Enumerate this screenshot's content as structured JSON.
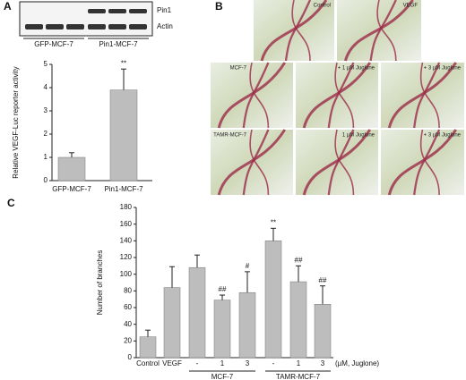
{
  "panel_labels": [
    "A",
    "B",
    "C"
  ],
  "blot": {
    "bands": [
      "Pin1",
      "Actin"
    ],
    "groups": [
      "GFP-MCF-7",
      "Pin1-MCF-7"
    ]
  },
  "photos": [
    {
      "label": "Control"
    },
    {
      "label": "VEGF"
    },
    {
      "label": "MCF-7"
    },
    {
      "label": "+ 1 µM Juglone"
    },
    {
      "label": "+ 3 µM Juglone"
    },
    {
      "label": "TAMR-MCF-7"
    },
    {
      "label": "1 µM Juglone"
    },
    {
      "label": "+ 3 µM Juglone"
    }
  ],
  "chart_data": [
    {
      "type": "bar",
      "ylabel": "Relative VEGF-Luc reporter activity",
      "categories": [
        "GFP-MCF-7",
        "Pin1-MCF-7"
      ],
      "values": [
        1,
        3.9
      ],
      "errors": [
        0.2,
        0.9
      ],
      "annotations": [
        null,
        "**"
      ],
      "color": "#bdbdbd",
      "ylim": [
        0,
        5
      ],
      "yticks": [
        0,
        1,
        2,
        3,
        4,
        5
      ]
    },
    {
      "type": "bar",
      "ylabel": "Number of branches",
      "categories": [
        "Control",
        "VEGF",
        "-",
        "1",
        "3",
        "-",
        "1",
        "3"
      ],
      "values": [
        25,
        84,
        108,
        69,
        78,
        140,
        91,
        64
      ],
      "errors": [
        8,
        25,
        15,
        6,
        25,
        15,
        19,
        22
      ],
      "annotations": [
        null,
        null,
        null,
        "##",
        "#",
        "**",
        "##",
        "##"
      ],
      "groups": [
        {
          "label": "MCF-7",
          "from": 2,
          "to": 4
        },
        {
          "label": "TAMR-MCF-7",
          "from": 5,
          "to": 7
        }
      ],
      "unit_label": "(µM, Juglone)",
      "color": "#bdbdbd",
      "ylim": [
        0,
        180
      ],
      "yticks": [
        0,
        20,
        40,
        60,
        80,
        100,
        120,
        140,
        160,
        180
      ]
    }
  ]
}
